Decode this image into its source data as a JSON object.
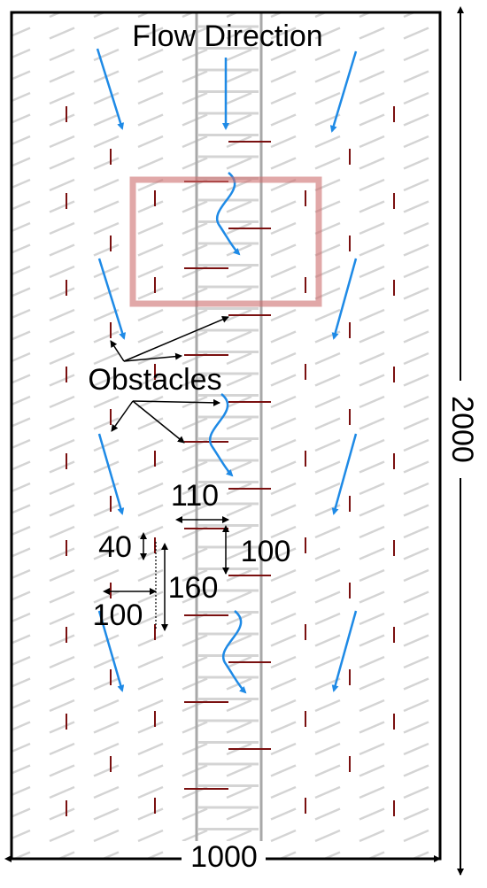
{
  "labels": {
    "flow": "Flow Direction",
    "obstacles": "Obstacles"
  },
  "dimensions": {
    "domain_width": 1000,
    "domain_height": 2000,
    "center_gap": 110,
    "row_spacing": 100,
    "obstacle_length": 40,
    "column_spacing": 160,
    "side_spacing": 100
  }
}
